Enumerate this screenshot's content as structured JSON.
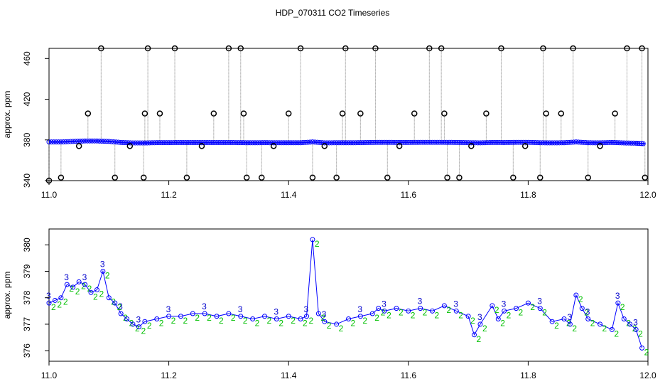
{
  "title": "HDP_070311  CO2 Timeseries",
  "colors": {
    "series_line": "#0000ff",
    "series_points": "#0000ff",
    "outlier_points": "#000000",
    "raw_trace": "#808080",
    "flag_points": "#00bcd4",
    "label_2": "#00c000",
    "label_3": "#0000cc"
  },
  "chart_data": [
    {
      "type": "scatter",
      "xlabel": "",
      "ylabel": "approx. ppm",
      "xlim": [
        11.0,
        12.0
      ],
      "ylim": [
        340,
        470
      ],
      "x_ticks": [
        "11.0",
        "11.2",
        "11.4",
        "11.6",
        "11.8",
        "12.0"
      ],
      "y_ticks": [
        "340",
        "380",
        "420",
        "460"
      ],
      "grid": false,
      "series": [
        {
          "values_note": "",
          "x": [
            11.0,
            11.02,
            11.04,
            11.06,
            11.08,
            11.1,
            11.12,
            11.14,
            11.16,
            11.18,
            11.2,
            11.22,
            11.24,
            11.26,
            11.28,
            11.3,
            11.32,
            11.34,
            11.36,
            11.38,
            11.4,
            11.42,
            11.44,
            11.46,
            11.48,
            11.5,
            11.52,
            11.54,
            11.56,
            11.58,
            11.6,
            11.62,
            11.64,
            11.66,
            11.68,
            11.7,
            11.72,
            11.74,
            11.76,
            11.78,
            11.8,
            11.82,
            11.84,
            11.86,
            11.88,
            11.9,
            11.92,
            11.94,
            11.96,
            11.98,
            11.995
          ],
          "y": [
            378,
            378,
            378.5,
            379,
            379,
            378.5,
            377.5,
            377,
            377,
            377.3,
            377.3,
            377.4,
            377.4,
            377.4,
            377.4,
            377.4,
            377.3,
            377.2,
            377.3,
            377.2,
            377.2,
            377.2,
            378,
            377.1,
            377.2,
            377.2,
            377.3,
            377.5,
            377.6,
            377.5,
            377.5,
            377.6,
            377.6,
            377.6,
            377.5,
            377.3,
            377.1,
            377.5,
            377.4,
            377.6,
            377.6,
            377.2,
            377.1,
            377.2,
            378,
            377.2,
            377.1,
            377.5,
            377.0,
            376.8,
            376.2
          ]
        }
      ],
      "outliers": {
        "x": [
          11.0,
          11.02,
          11.05,
          11.065,
          11.087,
          11.11,
          11.135,
          11.158,
          11.16,
          11.165,
          11.185,
          11.21,
          11.23,
          11.255,
          11.275,
          11.3,
          11.32,
          11.325,
          11.33,
          11.355,
          11.375,
          11.4,
          11.42,
          11.44,
          11.46,
          11.48,
          11.49,
          11.495,
          11.52,
          11.545,
          11.565,
          11.585,
          11.61,
          11.635,
          11.655,
          11.66,
          11.665,
          11.685,
          11.705,
          11.73,
          11.755,
          11.775,
          11.795,
          11.82,
          11.825,
          11.83,
          11.855,
          11.875,
          11.9,
          11.92,
          11.945,
          11.965,
          11.99,
          11.995
        ],
        "y": [
          340,
          343,
          374,
          406,
          470,
          343,
          374,
          343,
          406,
          470,
          406,
          470,
          343,
          374,
          406,
          470,
          470,
          406,
          343,
          343,
          374,
          406,
          470,
          343,
          374,
          343,
          406,
          470,
          406,
          470,
          343,
          374,
          406,
          470,
          470,
          406,
          343,
          343,
          374,
          406,
          470,
          343,
          374,
          343,
          470,
          406,
          406,
          470,
          343,
          374,
          406,
          470,
          470,
          343
        ]
      }
    },
    {
      "type": "line",
      "xlabel": "",
      "ylabel": "approx. ppm",
      "xlim": [
        11.0,
        12.0
      ],
      "ylim": [
        375.6,
        380.6
      ],
      "x_ticks": [
        "11.0",
        "11.2",
        "11.4",
        "11.6",
        "11.8",
        "12.0"
      ],
      "y_ticks": [
        "376",
        "377",
        "378",
        "379",
        "380"
      ],
      "grid": false,
      "series": [
        {
          "x": [
            11.0,
            11.01,
            11.02,
            11.03,
            11.04,
            11.05,
            11.06,
            11.07,
            11.08,
            11.09,
            11.1,
            11.11,
            11.12,
            11.13,
            11.14,
            11.15,
            11.16,
            11.18,
            11.2,
            11.22,
            11.24,
            11.26,
            11.28,
            11.3,
            11.32,
            11.34,
            11.36,
            11.38,
            11.4,
            11.42,
            11.43,
            11.44,
            11.45,
            11.46,
            11.48,
            11.5,
            11.52,
            11.54,
            11.55,
            11.56,
            11.58,
            11.6,
            11.62,
            11.64,
            11.66,
            11.68,
            11.7,
            11.71,
            11.72,
            11.74,
            11.75,
            11.76,
            11.78,
            11.8,
            11.82,
            11.84,
            11.86,
            11.87,
            11.88,
            11.89,
            11.9,
            11.92,
            11.94,
            11.95,
            11.96,
            11.97,
            11.98,
            11.99
          ],
          "y": [
            377.8,
            377.9,
            378.0,
            378.5,
            378.4,
            378.6,
            378.5,
            378.2,
            378.3,
            379.0,
            378.0,
            377.8,
            377.4,
            377.2,
            377.0,
            376.9,
            377.1,
            377.2,
            377.3,
            377.3,
            377.4,
            377.4,
            377.3,
            377.4,
            377.3,
            377.2,
            377.3,
            377.2,
            377.3,
            377.2,
            377.3,
            380.2,
            377.4,
            377.1,
            377.0,
            377.2,
            377.3,
            377.4,
            377.6,
            377.5,
            377.6,
            377.5,
            377.6,
            377.5,
            377.7,
            377.5,
            377.3,
            376.6,
            377.0,
            377.7,
            377.2,
            377.5,
            377.6,
            377.8,
            377.6,
            377.1,
            377.2,
            377.0,
            378.1,
            377.6,
            377.2,
            377.0,
            376.8,
            377.8,
            377.2,
            377.0,
            376.8,
            376.1
          ]
        }
      ]
    }
  ]
}
